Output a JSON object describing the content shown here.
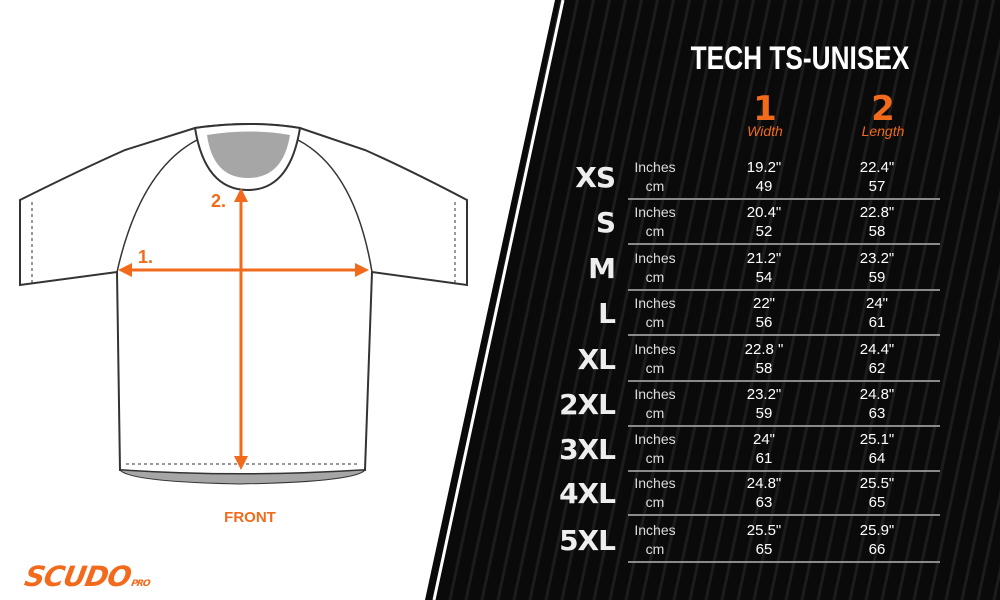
{
  "title": "TECH TS-UNISEX",
  "columns": [
    {
      "number": "1",
      "name": "Width"
    },
    {
      "number": "2",
      "name": "Length"
    }
  ],
  "unit_labels": {
    "inches": "Inches",
    "cm": "cm"
  },
  "rows": [
    {
      "size": "XS",
      "width_in": "19.2\"",
      "width_cm": "49",
      "length_in": "22.4\"",
      "length_cm": "57"
    },
    {
      "size": "S",
      "width_in": "20.4\"",
      "width_cm": "52",
      "length_in": "22.8\"",
      "length_cm": "58"
    },
    {
      "size": "M",
      "width_in": "21.2\"",
      "width_cm": "54",
      "length_in": "23.2\"",
      "length_cm": "59"
    },
    {
      "size": "L",
      "width_in": "22\"",
      "width_cm": "56",
      "length_in": "24\"",
      "length_cm": "61"
    },
    {
      "size": "XL",
      "width_in": "22.8 \"",
      "width_cm": "58",
      "length_in": "24.4\"",
      "length_cm": "62"
    },
    {
      "size": "2XL",
      "width_in": "23.2\"",
      "width_cm": "59",
      "length_in": "24.8\"",
      "length_cm": "63"
    },
    {
      "size": "3XL",
      "width_in": "24\"",
      "width_cm": "61",
      "length_in": "25.1\"",
      "length_cm": "64"
    },
    {
      "size": "4XL",
      "width_in": "24.8\"",
      "width_cm": "63",
      "length_in": "25.5\"",
      "length_cm": "65"
    },
    {
      "size": "5XL",
      "width_in": "25.5\"",
      "width_cm": "65",
      "length_in": "25.9\"",
      "length_cm": "66"
    }
  ],
  "diagram": {
    "label_width": "1.",
    "label_length": "2.",
    "view": "FRONT"
  },
  "logo": {
    "brand": "SCUDO",
    "sub": "PRO"
  },
  "colors": {
    "accent": "#f26a1b",
    "panel": "#0a0a0a"
  }
}
